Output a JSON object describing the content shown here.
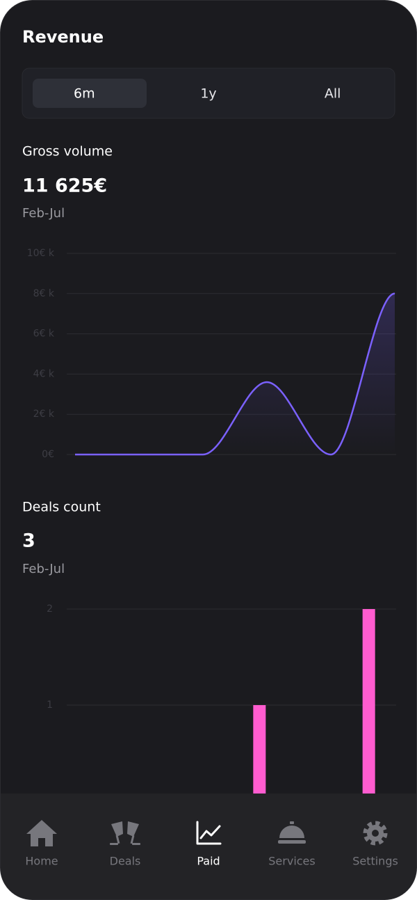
{
  "header": {
    "title": "Revenue"
  },
  "tabs": [
    {
      "label": "6m",
      "selected": true
    },
    {
      "label": "1y",
      "selected": false
    },
    {
      "label": "All",
      "selected": false
    }
  ],
  "sections": [
    {
      "label": "Gross volume",
      "total": "11 625€",
      "period": "Feb-Jul"
    },
    {
      "label": "Deals count",
      "total": "3",
      "period": "Feb-Jul"
    }
  ],
  "chart_data": [
    {
      "type": "line",
      "categories": [
        null,
        null,
        null,
        null,
        null,
        null
      ],
      "values": [
        0,
        0,
        0,
        3.6,
        0,
        8
      ],
      "color": "#7b61ff",
      "ylim": [
        0,
        10
      ],
      "yticks": [
        {
          "value": 0,
          "label": "0€"
        },
        {
          "value": 2,
          "label": "2€ k"
        },
        {
          "value": 4,
          "label": "4€ k"
        },
        {
          "value": 6,
          "label": "6€ k"
        },
        {
          "value": 8,
          "label": "8€ k"
        },
        {
          "value": 10,
          "label": "10€ k"
        }
      ],
      "grid": true
    },
    {
      "type": "bar",
      "categories": [
        null,
        null,
        null,
        null,
        null,
        null
      ],
      "values": [
        0,
        0,
        0,
        1,
        0,
        2
      ],
      "color": "#ff5ccf",
      "ylim": [
        0,
        2
      ],
      "yticks": [
        1,
        2
      ],
      "grid": true
    }
  ],
  "nav": [
    {
      "label": "Home",
      "active": false
    },
    {
      "label": "Deals",
      "active": false
    },
    {
      "label": "Paid",
      "active": true
    },
    {
      "label": "Services",
      "active": false
    },
    {
      "label": "Settings",
      "active": false
    }
  ]
}
